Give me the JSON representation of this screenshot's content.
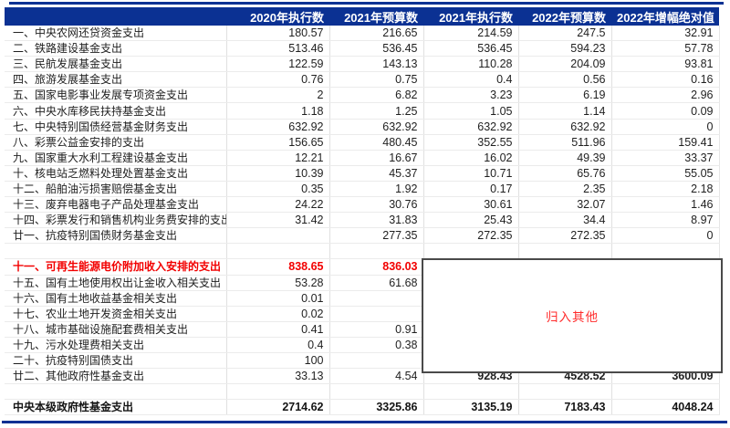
{
  "colors": {
    "header_bg": "#0b3193",
    "header_text": "#ffffff",
    "grid_line": "#e0e0e0",
    "body_text": "#1f1f1f",
    "highlight_red": "#f20000",
    "annotation_red": "#ff2a2a",
    "frame_line": "#0b3193",
    "annotation_border": "#4a4a4a"
  },
  "annotation": {
    "text": "归入其他"
  },
  "chart_data": {
    "type": "table",
    "columns": [
      "",
      "2020年执行数",
      "2021年预算数",
      "2021年执行数",
      "2022年预算数",
      "2022年增幅绝对值"
    ],
    "rows": [
      {
        "label": "一、中央农网还贷资金支出",
        "values": [
          "180.57",
          "216.65",
          "214.59",
          "247.5",
          "32.91"
        ]
      },
      {
        "label": "二、铁路建设基金支出",
        "values": [
          "513.46",
          "536.45",
          "536.45",
          "594.23",
          "57.78"
        ]
      },
      {
        "label": "三、民航发展基金支出",
        "values": [
          "122.59",
          "143.13",
          "110.28",
          "204.09",
          "93.81"
        ]
      },
      {
        "label": "四、旅游发展基金支出",
        "values": [
          "0.76",
          "0.75",
          "0.4",
          "0.56",
          "0.16"
        ]
      },
      {
        "label": "五、国家电影事业发展专项资金支出",
        "values": [
          "2",
          "6.82",
          "3.23",
          "6.19",
          "2.96"
        ]
      },
      {
        "label": "六、中央水库移民扶持基金支出",
        "values": [
          "1.18",
          "1.25",
          "1.05",
          "1.14",
          "0.09"
        ]
      },
      {
        "label": "七、中央特别国债经营基金财务支出",
        "values": [
          "632.92",
          "632.92",
          "632.92",
          "632.92",
          "0"
        ]
      },
      {
        "label": "八、彩票公益金安排的支出",
        "values": [
          "156.65",
          "480.45",
          "352.55",
          "511.96",
          "159.41"
        ]
      },
      {
        "label": "九、国家重大水利工程建设基金支出",
        "values": [
          "12.21",
          "16.67",
          "16.02",
          "49.39",
          "33.37"
        ]
      },
      {
        "label": "十、核电站乏燃料处理处置基金支出",
        "values": [
          "10.39",
          "45.37",
          "10.71",
          "65.76",
          "55.05"
        ]
      },
      {
        "label": "十二、船舶油污损害赔偿基金支出",
        "values": [
          "0.35",
          "1.92",
          "0.17",
          "2.35",
          "2.18"
        ]
      },
      {
        "label": "十三、废弃电器电子产品处理基金支出",
        "values": [
          "24.22",
          "30.76",
          "30.61",
          "32.07",
          "1.46"
        ]
      },
      {
        "label": "十四、彩票发行和销售机构业务费安排的支出",
        "values": [
          "31.42",
          "31.83",
          "25.43",
          "34.4",
          "8.97"
        ]
      },
      {
        "label": "廿一、抗疫特别国债财务基金支出",
        "values": [
          "",
          "277.35",
          "272.35",
          "272.35",
          "0"
        ]
      },
      {
        "label": "",
        "values": [
          "",
          "",
          "",
          "",
          ""
        ],
        "style": "empty"
      },
      {
        "label": "十一、可再生能源电价附加收入安排的支出",
        "values": [
          "838.65",
          "836.03",
          "",
          "",
          ""
        ],
        "style": "red"
      },
      {
        "label": "十五、国有土地使用权出让金收入相关支出",
        "values": [
          "53.28",
          "61.68",
          "",
          "",
          ""
        ]
      },
      {
        "label": "十六、国有土地收益基金相关支出",
        "values": [
          "0.01",
          "",
          "",
          "",
          ""
        ]
      },
      {
        "label": "十七、农业土地开发资金相关支出",
        "values": [
          "0.02",
          "",
          "",
          "",
          ""
        ]
      },
      {
        "label": "十八、城市基础设施配套费相关支出",
        "values": [
          "0.41",
          "0.91",
          "",
          "",
          ""
        ]
      },
      {
        "label": "十九、污水处理费相关支出",
        "values": [
          "0.4",
          "0.38",
          "",
          "",
          ""
        ]
      },
      {
        "label": "二十、抗疫特别国债支出",
        "values": [
          "100",
          "",
          "",
          "",
          ""
        ]
      },
      {
        "label": "廿二、其他政府性基金支出",
        "values": [
          "33.13",
          "4.54",
          "928.43",
          "4528.52",
          "3600.09"
        ],
        "red_from": 2
      },
      {
        "label": "",
        "values": [
          "",
          "",
          "",
          "",
          ""
        ],
        "style": "empty"
      },
      {
        "label": "中央本级政府性基金支出",
        "values": [
          "2714.62",
          "3325.86",
          "3135.19",
          "7183.43",
          "4048.24"
        ],
        "style": "total"
      }
    ],
    "annotations": [
      {
        "text": "归入其他"
      }
    ],
    "title": "",
    "legend": "none",
    "grid": "on"
  }
}
